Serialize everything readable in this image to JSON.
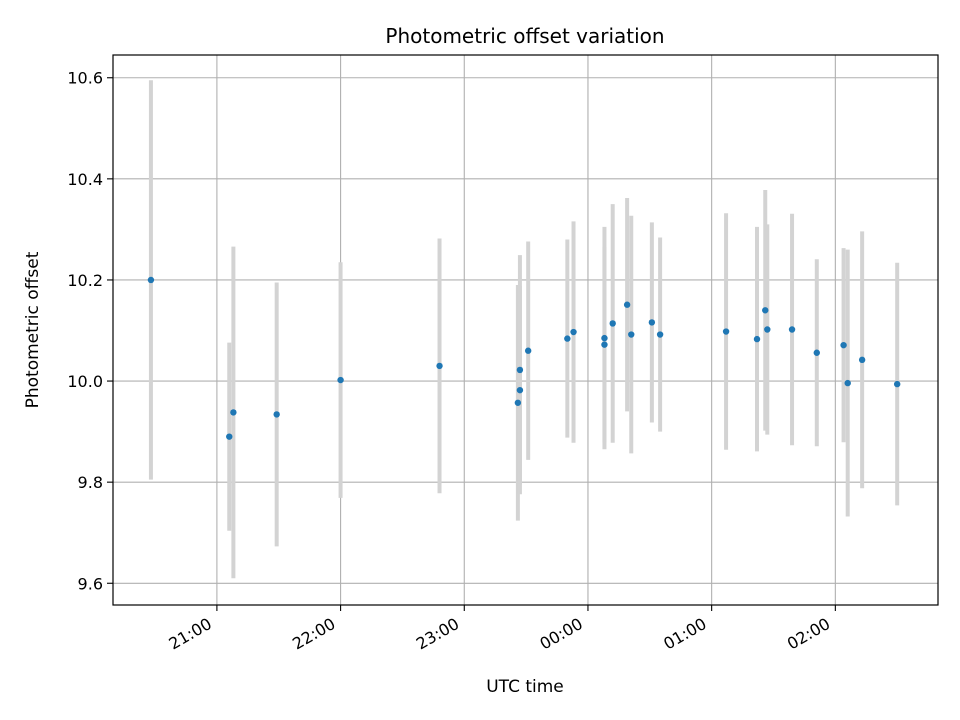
{
  "chart_data": {
    "type": "scatter",
    "title": "Photometric offset variation",
    "xlabel": "UTC time",
    "ylabel": "Photometric offset",
    "x_axis": {
      "unit": "hours since 2000-01-01T00:00 UTC of the preceding evening",
      "range": [
        20.16,
        26.83
      ],
      "ticks": [
        21,
        22,
        23,
        24,
        25,
        26
      ],
      "tick_labels": [
        "21:00",
        "22:00",
        "23:00",
        "00:00",
        "01:00",
        "02:00"
      ]
    },
    "y_axis": {
      "range": [
        9.557,
        10.645
      ],
      "ticks": [
        9.6,
        9.8,
        10.0,
        10.2,
        10.4,
        10.6
      ],
      "tick_labels": [
        "9.6",
        "9.8",
        "10.0",
        "10.2",
        "10.4",
        "10.6"
      ]
    },
    "grid": true,
    "colors": {
      "point": "#1f77b4",
      "errorbar": "#d3d3d3",
      "grid": "#b0b0b0"
    },
    "series": [
      {
        "name": "",
        "points": [
          {
            "x": "20:28",
            "y": 10.2,
            "err": 0.395
          },
          {
            "x": "21:06",
            "y": 9.89,
            "err": 0.186
          },
          {
            "x": "21:08",
            "y": 9.938,
            "err": 0.328
          },
          {
            "x": "21:29",
            "y": 9.934,
            "err": 0.261
          },
          {
            "x": "22:00",
            "y": 10.002,
            "err": 0.233
          },
          {
            "x": "22:48",
            "y": 10.03,
            "err": 0.252
          },
          {
            "x": "23:26",
            "y": 9.957,
            "err": 0.233
          },
          {
            "x": "23:27",
            "y": 9.982,
            "err": 0.206
          },
          {
            "x": "23:27",
            "y": 10.022,
            "err": 0.227
          },
          {
            "x": "23:31",
            "y": 10.06,
            "err": 0.216
          },
          {
            "x": "23:50",
            "y": 10.084,
            "err": 0.196
          },
          {
            "x": "23:53",
            "y": 10.097,
            "err": 0.219
          },
          {
            "x": "00:08",
            "y": 10.072,
            "err": 0.193
          },
          {
            "x": "00:08",
            "y": 10.085,
            "err": 0.22
          },
          {
            "x": "00:12",
            "y": 10.114,
            "err": 0.236
          },
          {
            "x": "00:19",
            "y": 10.151,
            "err": 0.211
          },
          {
            "x": "00:21",
            "y": 10.092,
            "err": 0.235
          },
          {
            "x": "00:31",
            "y": 10.116,
            "err": 0.198
          },
          {
            "x": "00:35",
            "y": 10.092,
            "err": 0.192
          },
          {
            "x": "01:07",
            "y": 10.098,
            "err": 0.234
          },
          {
            "x": "01:22",
            "y": 10.083,
            "err": 0.222
          },
          {
            "x": "01:26",
            "y": 10.14,
            "err": 0.238
          },
          {
            "x": "01:27",
            "y": 10.102,
            "err": 0.208
          },
          {
            "x": "01:39",
            "y": 10.102,
            "err": 0.229
          },
          {
            "x": "01:51",
            "y": 10.056,
            "err": 0.185
          },
          {
            "x": "02:04",
            "y": 10.071,
            "err": 0.192
          },
          {
            "x": "02:06",
            "y": 9.996,
            "err": 0.264
          },
          {
            "x": "02:13",
            "y": 10.042,
            "err": 0.254
          },
          {
            "x": "02:30",
            "y": 9.994,
            "err": 0.24
          }
        ]
      }
    ]
  }
}
